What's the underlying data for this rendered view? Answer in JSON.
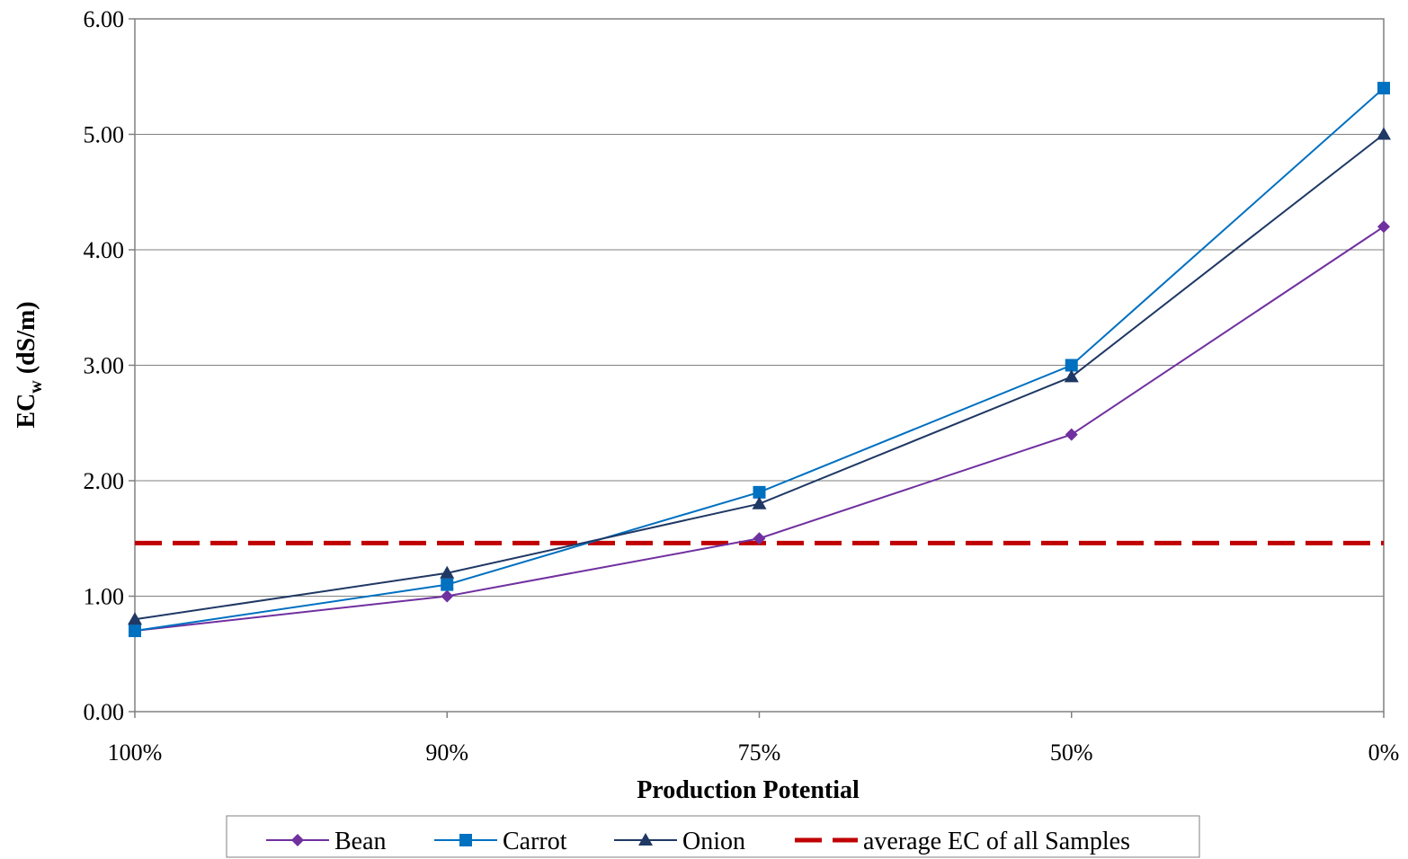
{
  "chart_data": {
    "type": "line",
    "title": "",
    "xlabel": "Production Potential",
    "ylabel_main": "EC",
    "ylabel_sub": "w",
    "ylabel_unit": " (dS/m)",
    "categories": [
      "100%",
      "90%",
      "75%",
      "50%",
      "0%"
    ],
    "ylim": [
      0,
      6
    ],
    "yticks": [
      "0.00",
      "1.00",
      "2.00",
      "3.00",
      "4.00",
      "5.00",
      "6.00"
    ],
    "grid": true,
    "legend_position": "bottom",
    "series": [
      {
        "name": "Bean",
        "values": [
          0.7,
          1.0,
          1.5,
          2.4,
          4.2
        ],
        "color": "#7030A0",
        "marker": "diamond"
      },
      {
        "name": "Carrot",
        "values": [
          0.7,
          1.1,
          1.9,
          3.0,
          5.4
        ],
        "color": "#0070C0",
        "marker": "square"
      },
      {
        "name": "Onion",
        "values": [
          0.8,
          1.2,
          1.8,
          2.9,
          5.0
        ],
        "color": "#1F3864",
        "marker": "triangle"
      }
    ],
    "reference_line": {
      "name": "average EC of all Samples",
      "value": 1.46,
      "color": "#C00000",
      "style": "dashed"
    }
  }
}
